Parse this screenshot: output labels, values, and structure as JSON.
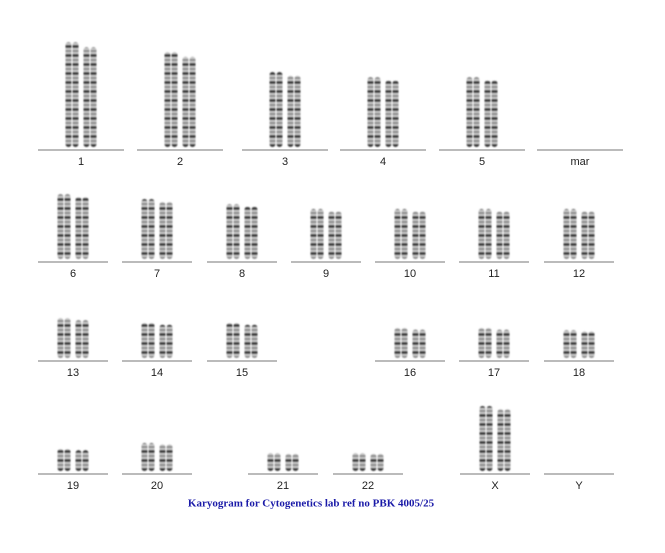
{
  "rows": [
    [
      "1",
      "2",
      "3",
      "4",
      "5",
      "mar"
    ],
    [
      "6",
      "7",
      "8",
      "9",
      "10",
      "11",
      "12"
    ],
    [
      "13",
      "14",
      "15",
      "16",
      "17",
      "18"
    ],
    [
      "19",
      "20",
      "21",
      "22",
      "X",
      "Y"
    ]
  ],
  "caption": "Karyogram for Cytogenetics lab ref no PBK 4005/25"
}
